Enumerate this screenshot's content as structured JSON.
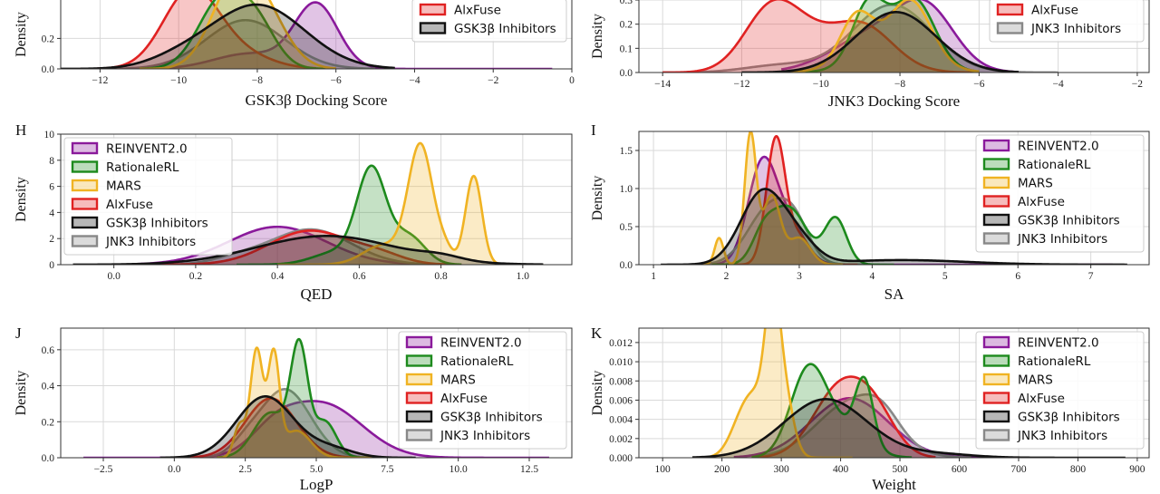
{
  "colors": {
    "REINVENT2.0": "#8a1a9b",
    "RationaleRL": "#1d8a1d",
    "MARS": "#f0b323",
    "AlxFuse": "#e02222",
    "GSK3B Inhibitors": "#111111",
    "JNK3 Inhibitors": "#888888"
  },
  "chart_data": [
    {
      "id": "G",
      "type": "area",
      "panel_letter": "",
      "xlabel": "GSK3β Docking Score",
      "ylabel": "Density",
      "xlim": [
        -13,
        0
      ],
      "ylim": [
        0,
        0.5
      ],
      "xticks": [
        -12,
        -10,
        -8,
        -6,
        -4,
        -2,
        0
      ],
      "xtick_labels": [
        "−12",
        "−10",
        "−8",
        "−6",
        "−4",
        "−2",
        "0"
      ],
      "yticks": [
        0,
        0.2
      ],
      "ytick_labels": [
        "0.0",
        "0.2"
      ],
      "legend": [
        "AlxFuse",
        "GSK3β Inhibitors"
      ],
      "legend_colors": [
        "AlxFuse",
        "GSK3B Inhibitors"
      ],
      "legend_position": "top-right",
      "series": [
        {
          "name": "REINVENT2.0",
          "comps": [
            [
              -6.5,
              0.55,
              0.42
            ],
            [
              -8.2,
              0.9,
              0.1
            ]
          ],
          "range": [
            -11,
            -0.5
          ]
        },
        {
          "name": "RationaleRL",
          "comps": [
            [
              -8.9,
              0.6,
              0.45
            ],
            [
              -8.0,
              0.5,
              0.25
            ]
          ],
          "range": [
            -11,
            -6
          ]
        },
        {
          "name": "MARS",
          "comps": [
            [
              -8.6,
              0.6,
              0.5
            ],
            [
              -7.8,
              0.6,
              0.3
            ]
          ],
          "range": [
            -11,
            -6
          ]
        },
        {
          "name": "AlxFuse",
          "comps": [
            [
              -9.7,
              0.7,
              0.5
            ],
            [
              -8.5,
              0.8,
              0.1
            ]
          ],
          "range": [
            -12.5,
            -6.5
          ]
        },
        {
          "name": "GSK3B Inhibitors",
          "comps": [
            [
              -8.0,
              1.2,
              0.42
            ],
            [
              -10,
              0.8,
              0.05
            ]
          ],
          "range": [
            -13,
            -4.5
          ]
        },
        {
          "name": "JNK3 Inhibitors",
          "comps": [
            [
              -8.3,
              1.0,
              0.32
            ]
          ],
          "range": [
            -12,
            -5
          ]
        }
      ]
    },
    {
      "id": "H2",
      "type": "area",
      "panel_letter": "",
      "xlabel": "JNK3 Docking Score",
      "ylabel": "Density",
      "xlim": [
        -14.6,
        -1.7
      ],
      "ylim": [
        0,
        0.33
      ],
      "xticks": [
        -14,
        -12,
        -10,
        -8,
        -6,
        -4,
        -2
      ],
      "xtick_labels": [
        "−14",
        "−12",
        "−10",
        "−8",
        "−6",
        "−4",
        "−2"
      ],
      "yticks": [
        0,
        0.1,
        0.2,
        0.3
      ],
      "ytick_labels": [
        "0.0",
        "0.1",
        "0.2",
        "0.3"
      ],
      "legend": [
        "AlxFuse",
        "JNK3 Inhibitors"
      ],
      "legend_colors": [
        "AlxFuse",
        "JNK3 Inhibitors"
      ],
      "legend_position": "top-right",
      "series": [
        {
          "name": "REINVENT2.0",
          "comps": [
            [
              -7.3,
              0.7,
              0.2
            ],
            [
              -8.5,
              1.1,
              0.17
            ]
          ],
          "range": [
            -11,
            -5
          ]
        },
        {
          "name": "RationaleRL",
          "comps": [
            [
              -8.8,
              0.4,
              0.22
            ],
            [
              -7.6,
              0.5,
              0.23
            ],
            [
              -8.2,
              0.8,
              0.1
            ]
          ],
          "range": [
            -11,
            -6
          ]
        },
        {
          "name": "MARS",
          "comps": [
            [
              -9.1,
              0.4,
              0.18
            ],
            [
              -7.7,
              0.5,
              0.22
            ],
            [
              -8.3,
              0.9,
              0.1
            ]
          ],
          "range": [
            -11,
            -6
          ]
        },
        {
          "name": "AlxFuse",
          "comps": [
            [
              -11.2,
              0.7,
              0.28
            ],
            [
              -9.0,
              0.8,
              0.2
            ],
            [
              -10.2,
              0.6,
              0.06
            ]
          ],
          "range": [
            -14,
            -6
          ]
        },
        {
          "name": "GSK3B Inhibitors",
          "comps": [
            [
              -8.1,
              1.0,
              0.25
            ]
          ],
          "range": [
            -12,
            -5
          ]
        },
        {
          "name": "JNK3 Inhibitors",
          "comps": [
            [
              -8.2,
              1.0,
              0.28
            ],
            [
              -11,
              0.9,
              0.03
            ]
          ],
          "range": [
            -14,
            -4
          ]
        }
      ]
    },
    {
      "id": "H",
      "type": "area",
      "panel_letter": "H",
      "xlabel": "QED",
      "ylabel": "Density",
      "xlim": [
        -0.13,
        1.12
      ],
      "ylim": [
        0,
        10
      ],
      "xticks": [
        0,
        0.2,
        0.4,
        0.6,
        0.8,
        1.0
      ],
      "xtick_labels": [
        "0.0",
        "0.2",
        "0.4",
        "0.6",
        "0.8",
        "1.0"
      ],
      "yticks": [
        0,
        2,
        4,
        6,
        8,
        10
      ],
      "ytick_labels": [
        "0",
        "2",
        "4",
        "6",
        "8",
        "10"
      ],
      "legend": [
        "REINVENT2.0",
        "RationaleRL",
        "MARS",
        "AlxFuse",
        "GSK3β Inhibitors",
        "JNK3 Inhibitors"
      ],
      "legend_colors": [
        "REINVENT2.0",
        "RationaleRL",
        "MARS",
        "AlxFuse",
        "GSK3B Inhibitors",
        "JNK3 Inhibitors"
      ],
      "legend_position": "top-left",
      "series": [
        {
          "name": "REINVENT2.0",
          "comps": [
            [
              0.4,
              0.12,
              2.9
            ]
          ],
          "range": [
            0.05,
            0.85
          ]
        },
        {
          "name": "RationaleRL",
          "comps": [
            [
              0.63,
              0.035,
              7.0
            ],
            [
              0.72,
              0.04,
              2.2
            ],
            [
              0.55,
              0.06,
              1.0
            ]
          ],
          "range": [
            0.3,
            0.85
          ]
        },
        {
          "name": "MARS",
          "comps": [
            [
              0.75,
              0.03,
              9.0
            ],
            [
              0.88,
              0.02,
              6.8
            ],
            [
              0.66,
              0.05,
              1.5
            ],
            [
              0.81,
              0.02,
              1.0
            ]
          ],
          "range": [
            0.4,
            1.05
          ]
        },
        {
          "name": "AlxFuse",
          "comps": [
            [
              0.48,
              0.1,
              2.6
            ],
            [
              0.65,
              0.06,
              0.6
            ]
          ],
          "range": [
            0.1,
            0.85
          ]
        },
        {
          "name": "GSK3B Inhibitors",
          "comps": [
            [
              0.52,
              0.17,
              2.2
            ],
            [
              0.8,
              0.05,
              0.3
            ]
          ],
          "range": [
            -0.1,
            1.05
          ]
        },
        {
          "name": "JNK3 Inhibitors",
          "comps": [
            [
              0.48,
              0.1,
              2.7
            ],
            [
              0.3,
              0.06,
              0.4
            ]
          ],
          "range": [
            0.05,
            0.85
          ]
        }
      ]
    },
    {
      "id": "I",
      "type": "area",
      "panel_letter": "I",
      "xlabel": "SA",
      "ylabel": "Density",
      "xlim": [
        0.8,
        7.8
      ],
      "ylim": [
        0,
        1.75
      ],
      "xticks": [
        1,
        2,
        3,
        4,
        5,
        6,
        7
      ],
      "xtick_labels": [
        "1",
        "2",
        "3",
        "4",
        "5",
        "6",
        "7"
      ],
      "yticks": [
        0,
        0.5,
        1.0,
        1.5
      ],
      "ytick_labels": [
        "0.0",
        "0.5",
        "1.0",
        "1.5"
      ],
      "legend": [
        "REINVENT2.0",
        "RationaleRL",
        "MARS",
        "AlxFuse",
        "GSK3β Inhibitors",
        "JNK3 Inhibitors"
      ],
      "legend_colors": [
        "REINVENT2.0",
        "RationaleRL",
        "MARS",
        "AlxFuse",
        "GSK3B Inhibitors",
        "JNK3 Inhibitors"
      ],
      "legend_position": "top-right",
      "series": [
        {
          "name": "REINVENT2.0",
          "comps": [
            [
              2.5,
              0.2,
              1.35
            ],
            [
              2.9,
              0.2,
              0.45
            ]
          ],
          "range": [
            1.8,
            7.3
          ]
        },
        {
          "name": "RationaleRL",
          "comps": [
            [
              2.85,
              0.25,
              0.75
            ],
            [
              3.5,
              0.15,
              0.6
            ],
            [
              2.5,
              0.15,
              0.3
            ]
          ],
          "range": [
            1.8,
            4.3
          ]
        },
        {
          "name": "MARS",
          "comps": [
            [
              2.33,
              0.08,
              1.7
            ],
            [
              2.62,
              0.12,
              0.9
            ],
            [
              1.9,
              0.06,
              0.35
            ],
            [
              3.0,
              0.15,
              0.35
            ]
          ],
          "range": [
            1.6,
            3.6
          ]
        },
        {
          "name": "AlxFuse",
          "comps": [
            [
              2.68,
              0.13,
              1.65
            ],
            [
              3.0,
              0.15,
              0.35
            ]
          ],
          "range": [
            1.8,
            3.8
          ]
        },
        {
          "name": "GSK3B Inhibitors",
          "comps": [
            [
              2.5,
              0.3,
              0.95
            ],
            [
              3.0,
              0.25,
              0.25
            ],
            [
              4.4,
              0.9,
              0.06
            ]
          ],
          "range": [
            1.1,
            7.5
          ]
        },
        {
          "name": "JNK3 Inhibitors",
          "comps": [
            [
              2.6,
              0.3,
              0.75
            ],
            [
              2.95,
              0.2,
              0.35
            ]
          ],
          "range": [
            1.6,
            4.2
          ]
        }
      ]
    },
    {
      "id": "J",
      "type": "area",
      "panel_letter": "J",
      "xlabel": "LogP",
      "ylabel": "Density",
      "xlim": [
        -4.0,
        14.0
      ],
      "ylim": [
        0,
        0.72
      ],
      "xticks": [
        -2.5,
        0,
        2.5,
        5,
        7.5,
        10,
        12.5
      ],
      "xtick_labels": [
        "−2.5",
        "0.0",
        "2.5",
        "5.0",
        "7.5",
        "10.0",
        "12.5"
      ],
      "yticks": [
        0,
        0.2,
        0.4,
        0.6
      ],
      "ytick_labels": [
        "0.0",
        "0.2",
        "0.4",
        "0.6"
      ],
      "legend": [
        "REINVENT2.0",
        "RationaleRL",
        "MARS",
        "AlxFuse",
        "GSK3β Inhibitors",
        "JNK3 Inhibitors"
      ],
      "legend_colors": [
        "REINVENT2.0",
        "RationaleRL",
        "MARS",
        "AlxFuse",
        "GSK3B Inhibitors",
        "JNK3 Inhibitors"
      ],
      "legend_position": "top-right",
      "series": [
        {
          "name": "REINVENT2.0",
          "comps": [
            [
              5.2,
              1.4,
              0.3
            ],
            [
              3.5,
              0.8,
              0.1
            ]
          ],
          "range": [
            -3.2,
            13.2
          ]
        },
        {
          "name": "RationaleRL",
          "comps": [
            [
              4.4,
              0.3,
              0.58
            ],
            [
              3.4,
              0.6,
              0.25
            ],
            [
              5.3,
              0.4,
              0.2
            ]
          ],
          "range": [
            1.5,
            7.0
          ]
        },
        {
          "name": "MARS",
          "comps": [
            [
              2.9,
              0.22,
              0.6
            ],
            [
              3.5,
              0.2,
              0.55
            ],
            [
              2.3,
              0.2,
              0.18
            ],
            [
              4.3,
              0.5,
              0.15
            ]
          ],
          "range": [
            1.5,
            7.0
          ]
        },
        {
          "name": "AlxFuse",
          "comps": [
            [
              3.4,
              0.9,
              0.33
            ]
          ],
          "range": [
            0.2,
            7.0
          ]
        },
        {
          "name": "GSK3B Inhibitors",
          "comps": [
            [
              3.2,
              1.0,
              0.34
            ],
            [
              5.5,
              0.8,
              0.05
            ]
          ],
          "range": [
            -0.5,
            8.5
          ]
        },
        {
          "name": "JNK3 Inhibitors",
          "comps": [
            [
              3.9,
              0.9,
              0.38
            ],
            [
              2.5,
              0.5,
              0.05
            ]
          ],
          "range": [
            0.5,
            8.0
          ]
        }
      ]
    },
    {
      "id": "K",
      "type": "area",
      "panel_letter": "K",
      "xlabel": "Weight",
      "ylabel": "Density",
      "xlim": [
        60,
        920
      ],
      "ylim": [
        0,
        0.0135
      ],
      "xticks": [
        100,
        200,
        300,
        400,
        500,
        600,
        700,
        800,
        900
      ],
      "xtick_labels": [
        "100",
        "200",
        "300",
        "400",
        "500",
        "600",
        "700",
        "800",
        "900"
      ],
      "yticks": [
        0,
        0.002,
        0.004,
        0.006,
        0.008,
        0.01,
        0.012
      ],
      "ytick_labels": [
        "0.000",
        "0.002",
        "0.004",
        "0.006",
        "0.008",
        "0.010",
        "0.012"
      ],
      "legend": [
        "REINVENT2.0",
        "RationaleRL",
        "MARS",
        "AlxFuse",
        "GSK3β Inhibitors",
        "JNK3 Inhibitors"
      ],
      "legend_colors": [
        "REINVENT2.0",
        "RationaleRL",
        "MARS",
        "AlxFuse",
        "GSK3B Inhibitors",
        "JNK3 Inhibitors"
      ],
      "legend_position": "top-right",
      "series": [
        {
          "name": "REINVENT2.0",
          "comps": [
            [
              415,
              65,
              0.0062
            ]
          ],
          "range": [
            220,
            680
          ]
        },
        {
          "name": "RationaleRL",
          "comps": [
            [
              345,
              30,
              0.0085
            ],
            [
              440,
              15,
              0.0065
            ],
            [
              400,
              40,
              0.003
            ]
          ],
          "range": [
            250,
            520
          ]
        },
        {
          "name": "MARS",
          "comps": [
            [
              285,
              12,
              0.0125
            ],
            [
              260,
              25,
              0.006
            ],
            [
              305,
              15,
              0.006
            ],
            [
              230,
              20,
              0.002
            ]
          ],
          "range": [
            180,
            420
          ]
        },
        {
          "name": "AlxFuse",
          "comps": [
            [
              400,
              45,
              0.0073
            ],
            [
              460,
              35,
              0.0035
            ]
          ],
          "range": [
            260,
            560
          ]
        },
        {
          "name": "GSK3B Inhibitors",
          "comps": [
            [
              375,
              70,
              0.0061
            ],
            [
              560,
              60,
              0.0004
            ]
          ],
          "range": [
            150,
            880
          ]
        },
        {
          "name": "JNK3 Inhibitors",
          "comps": [
            [
              420,
              60,
              0.0058
            ],
            [
              470,
              30,
              0.0018
            ]
          ],
          "range": [
            260,
            620
          ]
        }
      ]
    }
  ]
}
